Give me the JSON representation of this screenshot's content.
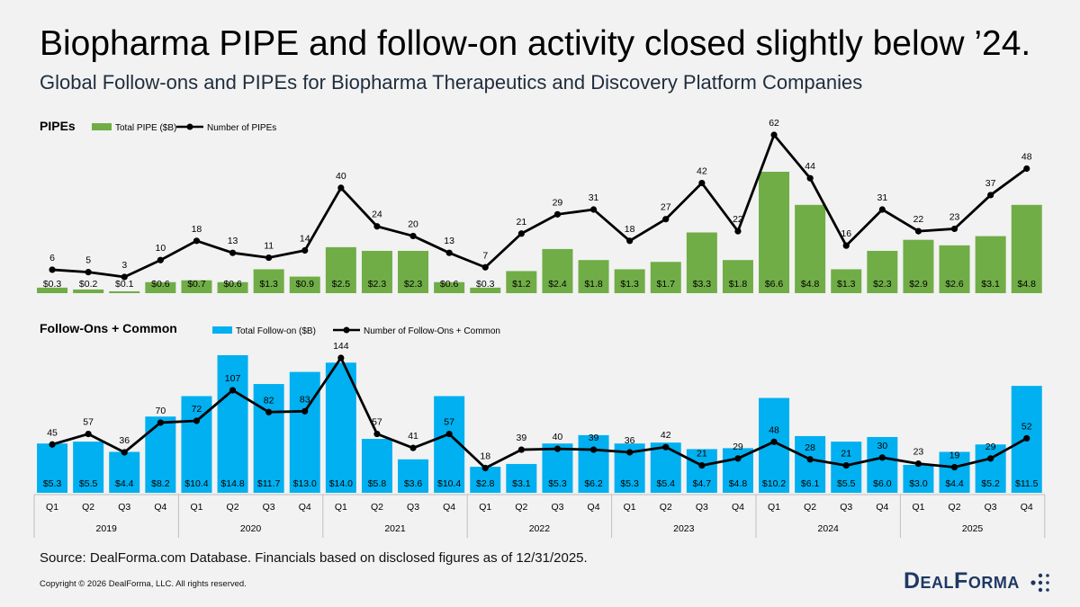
{
  "header": {
    "title": "Biopharma PIPE and follow-on activity closed slightly below ’24.",
    "subtitle": "Global Follow-ons and PIPEs for Biopharma Therapeutics and Discovery Platform Companies"
  },
  "footer": {
    "source": "Source: DealForma.com Database. Financials based on disclosed figures as of 12/31/2025.",
    "copyright": "Copyright © 2026 DealForma, LLC. All rights reserved.",
    "logo_text": "DealForma"
  },
  "colors": {
    "pipe_bar": "#70ad47",
    "followon_bar": "#00b0f0",
    "line": "#000000",
    "background": "#f2f2f2"
  },
  "chart_data": [
    {
      "type": "bar",
      "title": "PIPEs",
      "categories": [
        "Q1",
        "Q2",
        "Q3",
        "Q4",
        "Q1",
        "Q2",
        "Q3",
        "Q4",
        "Q1",
        "Q2",
        "Q3",
        "Q4",
        "Q1",
        "Q2",
        "Q3",
        "Q4",
        "Q1",
        "Q2",
        "Q3",
        "Q4",
        "Q1",
        "Q2",
        "Q3",
        "Q4",
        "Q1",
        "Q2",
        "Q3",
        "Q4"
      ],
      "series": [
        {
          "name": "Total PIPE ($B)",
          "type": "bar",
          "values": [
            0.3,
            0.2,
            0.1,
            0.6,
            0.7,
            0.6,
            1.3,
            0.9,
            2.5,
            2.3,
            2.3,
            0.6,
            0.3,
            1.2,
            2.4,
            1.8,
            1.3,
            1.7,
            3.3,
            1.8,
            6.6,
            4.8,
            1.3,
            2.3,
            2.9,
            2.6,
            3.1,
            4.8
          ],
          "labels": [
            "$0.3",
            "$0.2",
            "$0.1",
            "$0.6",
            "$0.7",
            "$0.6",
            "$1.3",
            "$0.9",
            "$2.5",
            "$2.3",
            "$2.3",
            "$0.6",
            "$0.3",
            "$1.2",
            "$2.4",
            "$1.8",
            "$1.3",
            "$1.7",
            "$3.3",
            "$1.8",
            "$6.6",
            "$4.8",
            "$1.3",
            "$2.3",
            "$2.9",
            "$2.6",
            "$3.1",
            "$4.8"
          ]
        },
        {
          "name": "Number of PIPEs",
          "type": "line",
          "values": [
            6,
            5,
            3,
            10,
            18,
            13,
            11,
            14,
            40,
            24,
            20,
            13,
            7,
            21,
            29,
            31,
            18,
            27,
            42,
            22,
            62,
            44,
            16,
            31,
            22,
            23,
            37,
            48
          ]
        }
      ],
      "legend_placement": "top-left",
      "gridlines": false
    },
    {
      "type": "bar",
      "title": "Follow-Ons + Common",
      "categories": [
        "Q1",
        "Q2",
        "Q3",
        "Q4",
        "Q1",
        "Q2",
        "Q3",
        "Q4",
        "Q1",
        "Q2",
        "Q3",
        "Q4",
        "Q1",
        "Q2",
        "Q3",
        "Q4",
        "Q1",
        "Q2",
        "Q3",
        "Q4",
        "Q1",
        "Q2",
        "Q3",
        "Q4",
        "Q1",
        "Q2",
        "Q3",
        "Q4"
      ],
      "years": [
        "2019",
        "2020",
        "2021",
        "2022",
        "2023",
        "2024",
        "2025"
      ],
      "series": [
        {
          "name": "Total Follow-on ($B)",
          "type": "bar",
          "values": [
            5.3,
            5.5,
            4.4,
            8.2,
            10.4,
            14.8,
            11.7,
            13.0,
            14.0,
            5.8,
            3.6,
            10.4,
            2.8,
            3.1,
            5.3,
            6.2,
            5.3,
            5.4,
            4.7,
            4.8,
            10.2,
            6.1,
            5.5,
            6.0,
            3.0,
            4.4,
            5.2,
            11.5
          ],
          "labels": [
            "$5.3",
            "$5.5",
            "$4.4",
            "$8.2",
            "$10.4",
            "$14.8",
            "$11.7",
            "$13.0",
            "$14.0",
            "$5.8",
            "$3.6",
            "$10.4",
            "$2.8",
            "$3.1",
            "$5.3",
            "$6.2",
            "$5.3",
            "$5.4",
            "$4.7",
            "$4.8",
            "$10.2",
            "$6.1",
            "$5.5",
            "$6.0",
            "$3.0",
            "$4.4",
            "$5.2",
            "$11.5"
          ]
        },
        {
          "name": "Number of Follow-Ons + Common",
          "type": "line",
          "values": [
            45,
            57,
            36,
            70,
            72,
            107,
            82,
            83,
            144,
            57,
            41,
            57,
            18,
            39,
            40,
            39,
            36,
            42,
            21,
            29,
            48,
            28,
            21,
            30,
            23,
            19,
            29,
            52
          ]
        }
      ],
      "legend_placement": "top-left",
      "gridlines": false
    }
  ]
}
